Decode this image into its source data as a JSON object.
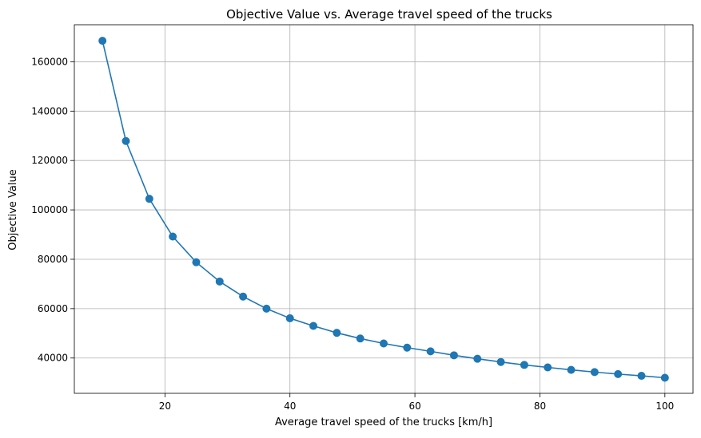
{
  "chart_data": {
    "type": "line",
    "title": "Objective Value vs. Average travel speed of the trucks",
    "xlabel": "Average travel speed of the trucks [km/h]",
    "ylabel": "Objective Value",
    "xlim": [
      5.5,
      104.5
    ],
    "ylim": [
      25700,
      175000
    ],
    "x_ticks": [
      20,
      40,
      60,
      80,
      100
    ],
    "y_ticks": [
      40000,
      60000,
      80000,
      100000,
      120000,
      140000,
      160000
    ],
    "grid": true,
    "legend": "none",
    "color": "#1f77b4",
    "series": [
      {
        "x": [
          10,
          13.75,
          17.5,
          21.25,
          25,
          28.75,
          32.5,
          36.25,
          40,
          43.75,
          47.5,
          51.25,
          55,
          58.75,
          62.5,
          66.25,
          70,
          73.75,
          77.5,
          81.25,
          85,
          88.75,
          92.5,
          96.25,
          100
        ],
        "values": [
          168500,
          127900,
          104500,
          89200,
          78800,
          71000,
          64900,
          60000,
          56100,
          53000,
          50200,
          47900,
          45900,
          44200,
          42700,
          41100,
          39700,
          38400,
          37200,
          36200,
          35200,
          34300,
          33500,
          32800,
          32000
        ]
      }
    ]
  }
}
